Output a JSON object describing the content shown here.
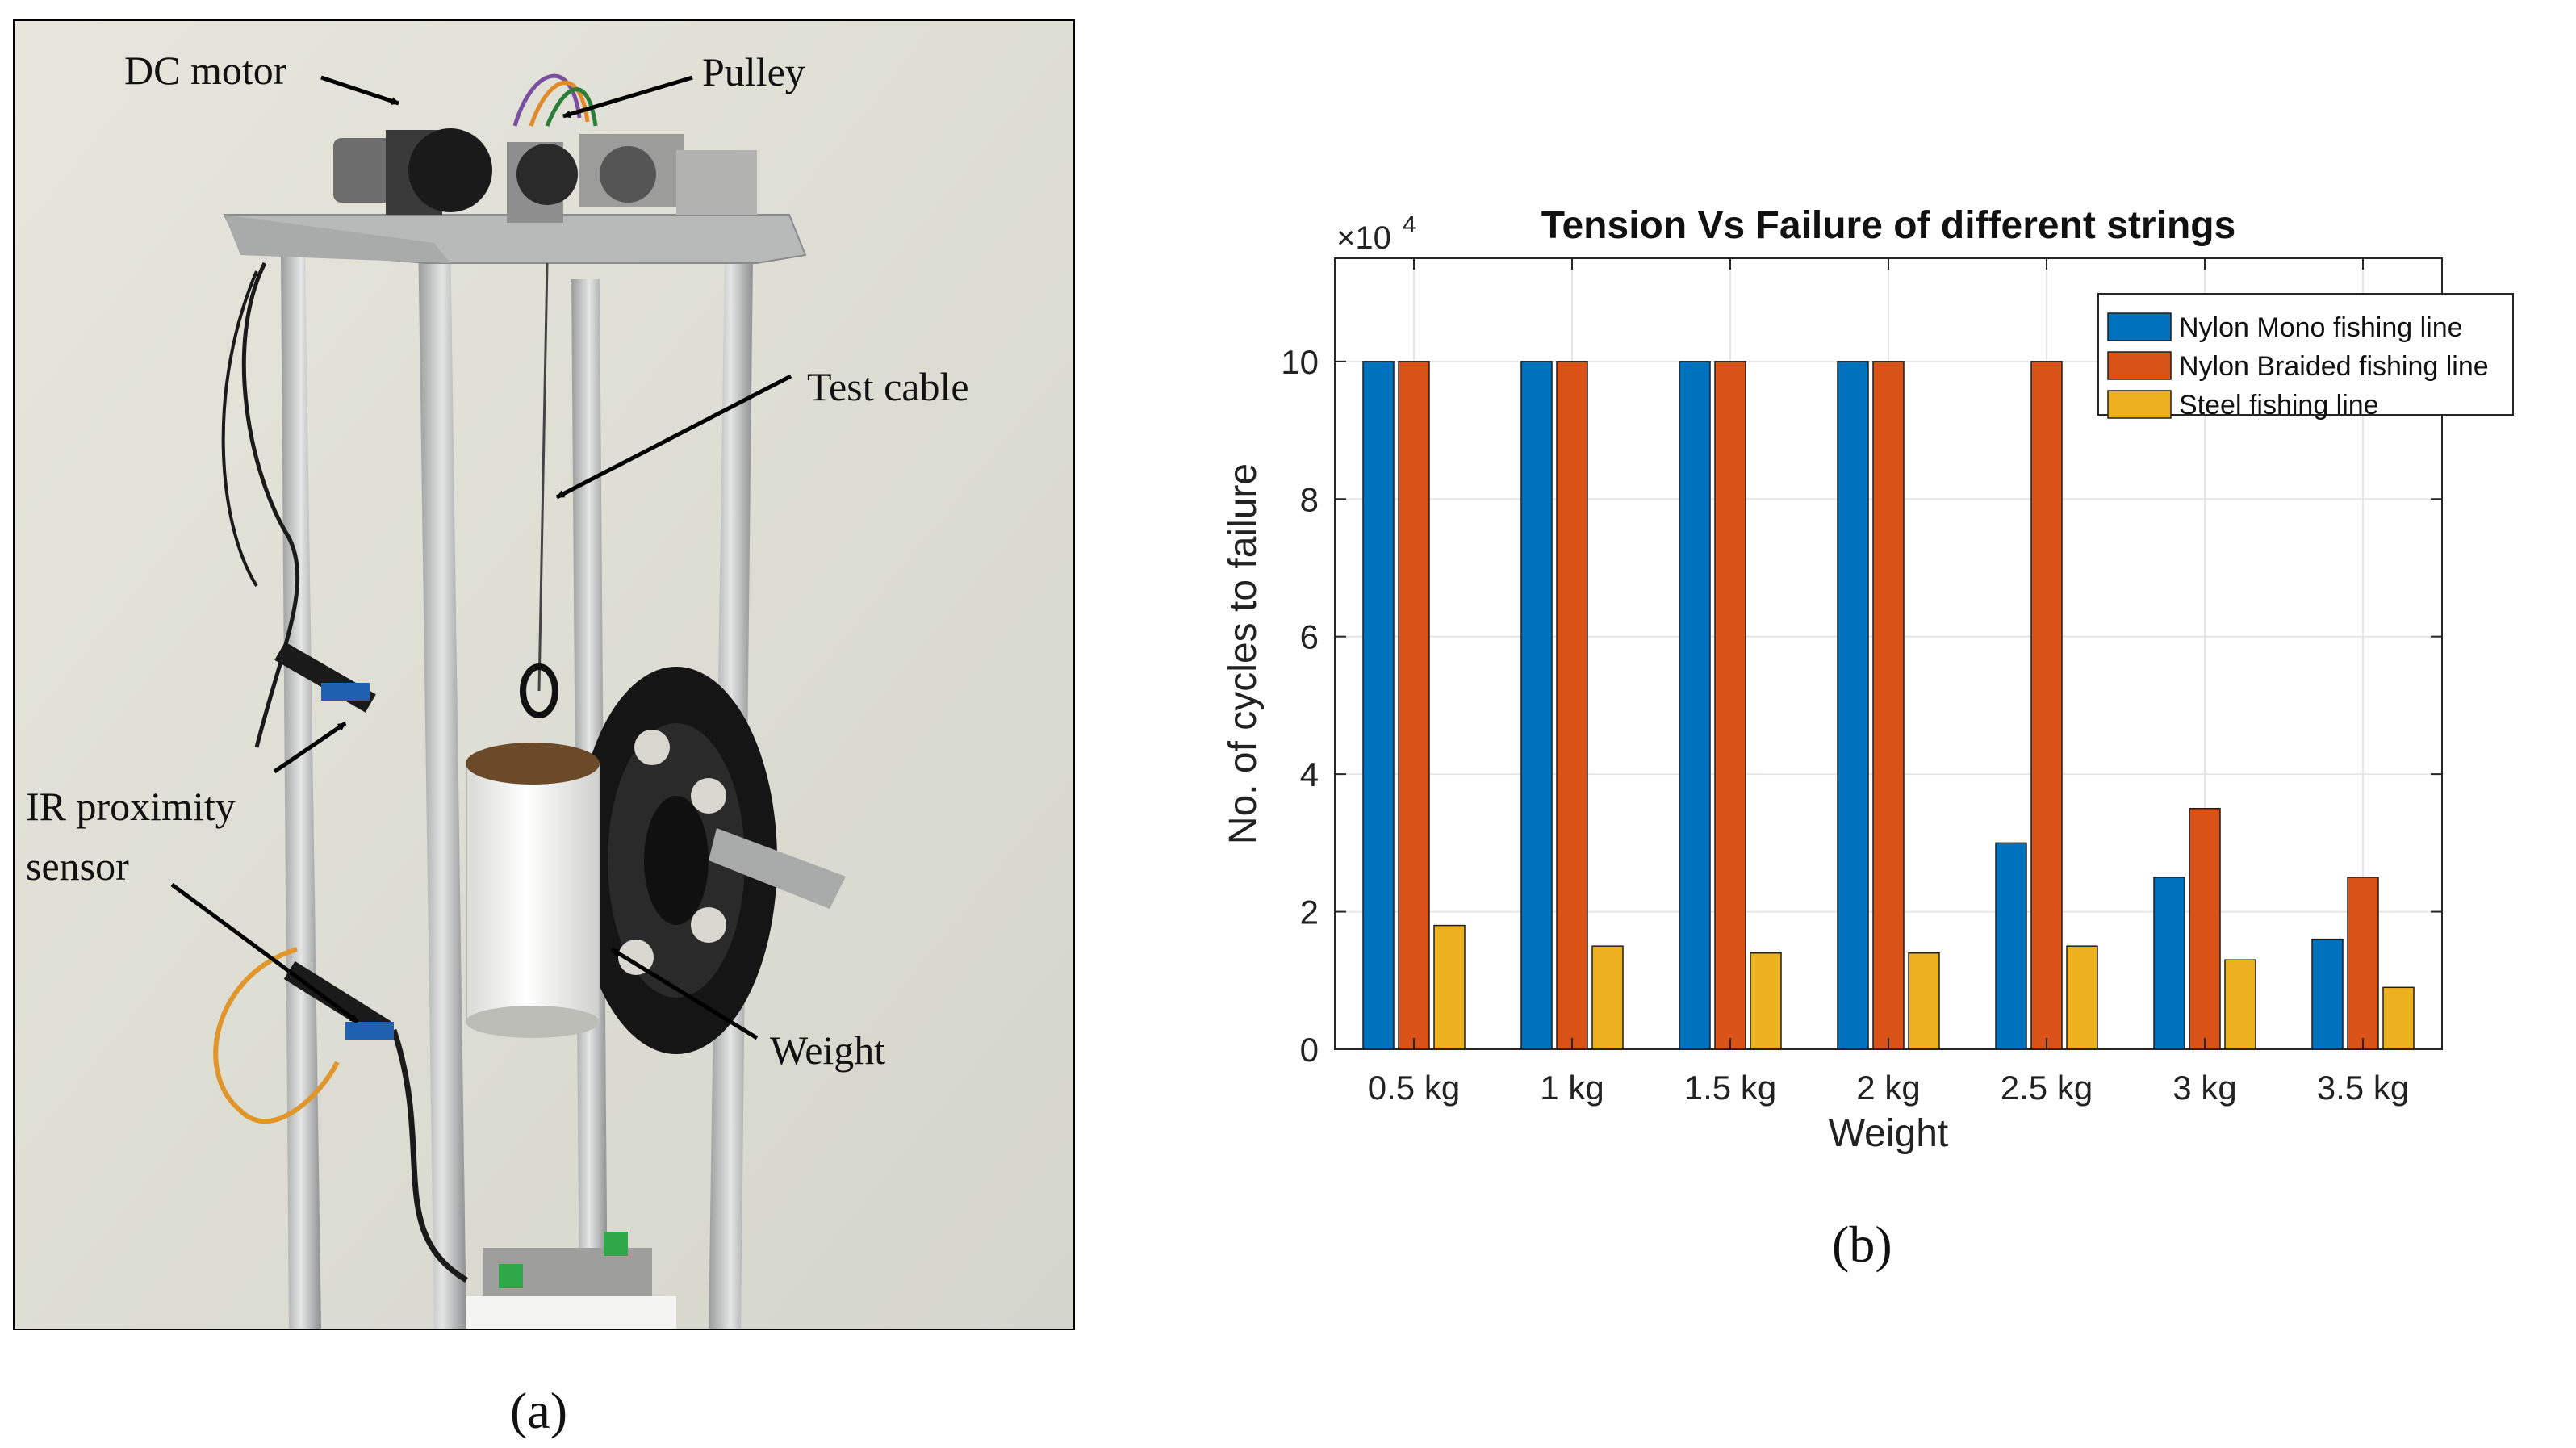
{
  "figure": {
    "panel_a_label": "(a)",
    "panel_b_label": "(b)"
  },
  "photo": {
    "labels": {
      "dc_motor": "DC motor",
      "pulley": "Pulley",
      "test_cable": "Test cable",
      "ir_line1": "IR proximity",
      "ir_line2": "sensor",
      "weight": "Weight"
    }
  },
  "colors": {
    "nylon_mono": "#0072BD",
    "nylon_braided": "#D95319",
    "steel": "#EDB120"
  },
  "chart_data": {
    "type": "bar",
    "title": "Tension Vs Failure of different strings",
    "xlabel": "Weight",
    "ylabel": "No. of cycles to failure",
    "exponent_label": "×10",
    "exponent_power": "4",
    "categories": [
      "0.5 kg",
      "1 kg",
      "1.5 kg",
      "2 kg",
      "2.5 kg",
      "3 kg",
      "3.5 kg"
    ],
    "series": [
      {
        "name": "Nylon Mono fishing line",
        "values": [
          10,
          10,
          10,
          10,
          3,
          2.5,
          1.6
        ]
      },
      {
        "name": "Nylon Braided fishing line",
        "values": [
          10,
          10,
          10,
          10,
          10,
          3.5,
          2.5
        ]
      },
      {
        "name": "Steel fishing line",
        "values": [
          1.8,
          1.5,
          1.4,
          1.4,
          1.5,
          1.3,
          0.9
        ]
      }
    ],
    "ylim": [
      0,
      11.5
    ],
    "yticks": [
      0,
      2,
      4,
      6,
      8,
      10
    ],
    "ytick_labels": [
      "0",
      "2",
      "4",
      "6",
      "8",
      "10"
    ],
    "grid": true,
    "legend_position": "top-right"
  }
}
